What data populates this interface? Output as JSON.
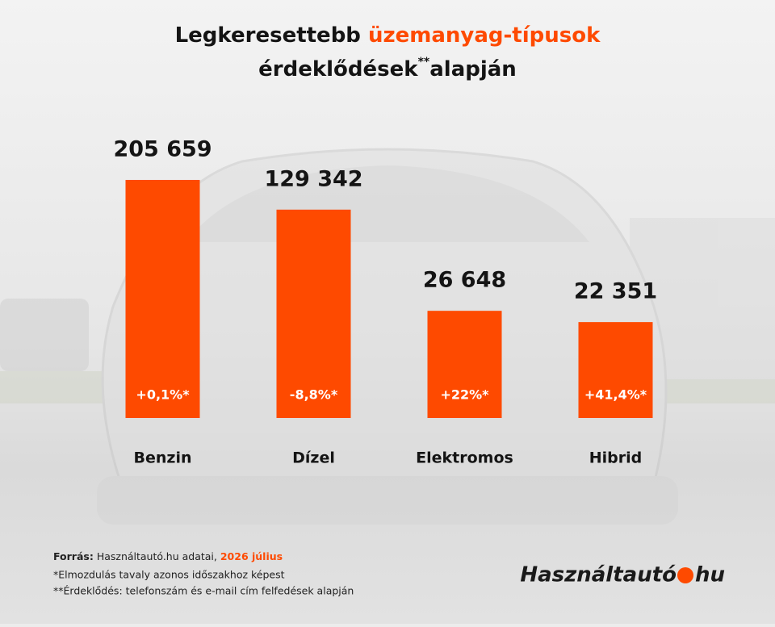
{
  "chart_data": {
    "type": "bar",
    "title": "Legkeresettebb",
    "title_highlight": "üzemanyag-típusok",
    "subtitle": "érdeklődések",
    "subtitle_mark": "**",
    "subtitle_end": "alapján",
    "categories": [
      "Benzin",
      "Dízel",
      "Elektromos",
      "Hibrid"
    ],
    "values": [
      205659,
      129342,
      26648,
      22351
    ],
    "value_labels": [
      "205 659",
      "129 342",
      "26 648",
      "22 351"
    ],
    "changes": [
      "+0,1%*",
      "-8,8%*",
      "+22%*",
      "+41,4%*"
    ],
    "color": "#fe4a00",
    "log_scale": true,
    "ylim": [
      5000,
      300000
    ]
  },
  "footer": {
    "source_label": "Forrás:",
    "source_text": "Használtautó.hu adatai,",
    "source_date": "2026 július",
    "note1": "*Elmozdulás tavaly azonos időszakhoz képest",
    "note2": "**Érdeklődés: telefonszám és e-mail cím felfedések alapján"
  },
  "logo": {
    "name": "Használtautó",
    "tld": "hu"
  }
}
